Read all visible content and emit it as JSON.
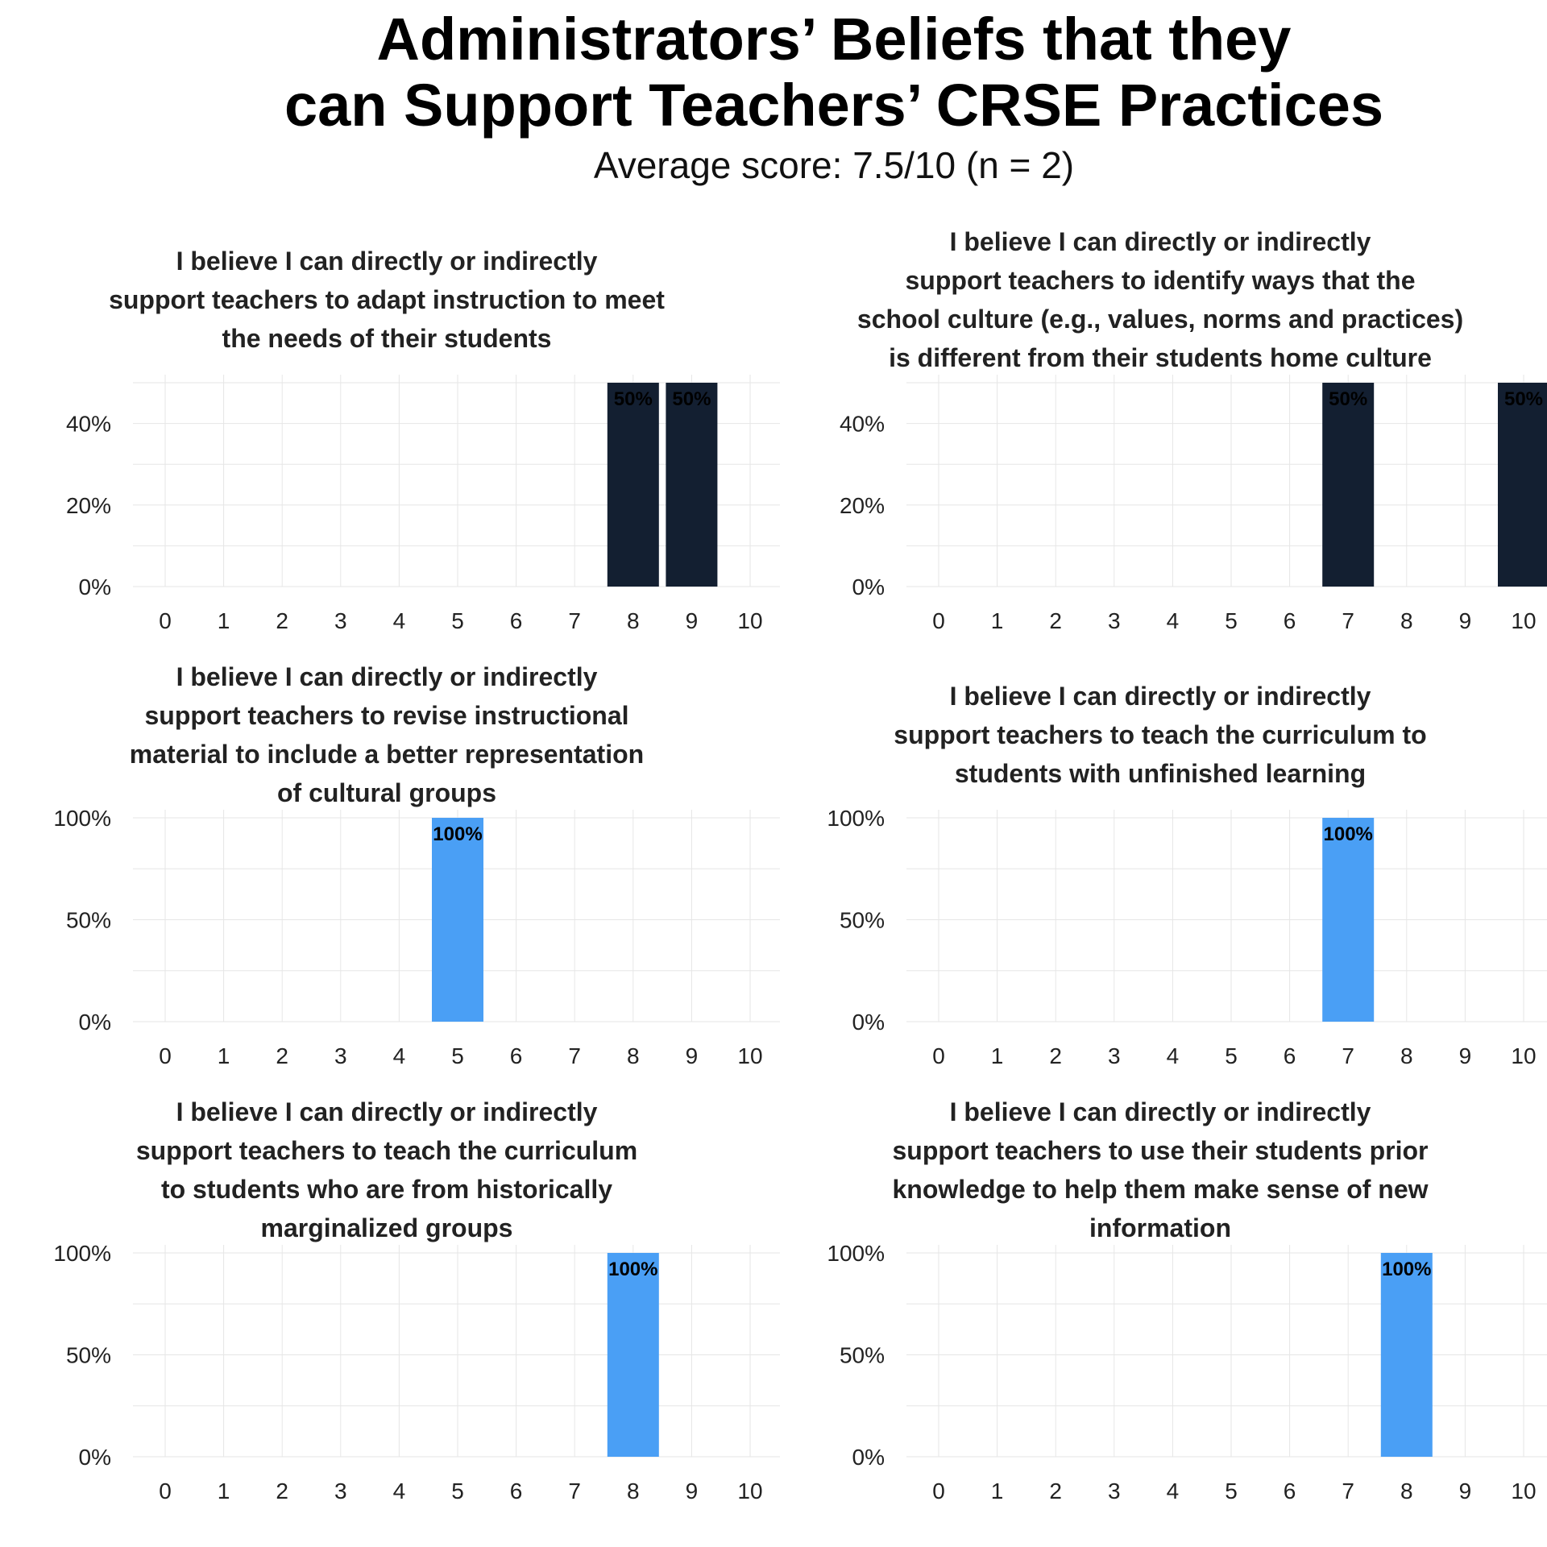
{
  "page": {
    "title_line1": "Administrators’ Beliefs that they",
    "title_line2": "can Support Teachers’ CRSE Practices",
    "subtitle": "Average score: 7.5/10 (n = 2)"
  },
  "colors": {
    "dark_bar": "#131f31",
    "light_bar": "#4a9ff5",
    "grid": "#e6e6e6"
  },
  "chart_data": [
    {
      "type": "bar",
      "title": "I believe I can directly or indirectly support teachers to adapt instruction to meet the needs of their students",
      "title_lines": [
        "I believe I can directly or indirectly",
        "support teachers to adapt instruction to meet",
        "the needs of their students"
      ],
      "x": [
        0,
        1,
        2,
        3,
        4,
        5,
        6,
        7,
        8,
        9,
        10
      ],
      "values": [
        0,
        0,
        0,
        0,
        0,
        0,
        0,
        0,
        50,
        50,
        0
      ],
      "labels": [
        "",
        "",
        "",
        "",
        "",
        "",
        "",
        "",
        "50%",
        "50%",
        ""
      ],
      "yticks": [
        "0%",
        "20%",
        "40%"
      ],
      "ytick_values": [
        0,
        20,
        40
      ],
      "ylim": [
        0,
        50
      ],
      "color": "dark"
    },
    {
      "type": "bar",
      "title": "I believe I can directly or indirectly support teachers to identify ways that the school culture (e.g., values, norms and practices) is different from their students home culture",
      "title_lines": [
        "I believe I can directly or indirectly",
        "support teachers to identify ways that the",
        "school culture (e.g., values, norms and practices)",
        "is different from their students home culture"
      ],
      "x": [
        0,
        1,
        2,
        3,
        4,
        5,
        6,
        7,
        8,
        9,
        10
      ],
      "values": [
        0,
        0,
        0,
        0,
        0,
        0,
        0,
        50,
        0,
        0,
        50
      ],
      "labels": [
        "",
        "",
        "",
        "",
        "",
        "",
        "",
        "50%",
        "",
        "",
        "50%"
      ],
      "yticks": [
        "0%",
        "20%",
        "40%"
      ],
      "ytick_values": [
        0,
        20,
        40
      ],
      "ylim": [
        0,
        50
      ],
      "color": "dark"
    },
    {
      "type": "bar",
      "title": "I believe I can directly or indirectly support teachers to revise instructional material to include a better representation of cultural groups",
      "title_lines": [
        "I believe I can directly or indirectly",
        "support teachers to revise instructional",
        "material to include a better representation",
        "of cultural groups"
      ],
      "x": [
        0,
        1,
        2,
        3,
        4,
        5,
        6,
        7,
        8,
        9,
        10
      ],
      "values": [
        0,
        0,
        0,
        0,
        0,
        100,
        0,
        0,
        0,
        0,
        0
      ],
      "labels": [
        "",
        "",
        "",
        "",
        "",
        "100%",
        "",
        "",
        "",
        "",
        ""
      ],
      "yticks": [
        "0%",
        "50%",
        "100%"
      ],
      "ytick_values": [
        0,
        50,
        100
      ],
      "ylim": [
        0,
        100
      ],
      "color": "light"
    },
    {
      "type": "bar",
      "title": "I believe I can directly or indirectly support teachers to teach the curriculum to students with unfinished learning",
      "title_lines": [
        "I believe I can directly or indirectly",
        "support teachers to teach the curriculum to",
        "students with unfinished learning"
      ],
      "x": [
        0,
        1,
        2,
        3,
        4,
        5,
        6,
        7,
        8,
        9,
        10
      ],
      "values": [
        0,
        0,
        0,
        0,
        0,
        0,
        0,
        100,
        0,
        0,
        0
      ],
      "labels": [
        "",
        "",
        "",
        "",
        "",
        "",
        "",
        "100%",
        "",
        "",
        ""
      ],
      "yticks": [
        "0%",
        "50%",
        "100%"
      ],
      "ytick_values": [
        0,
        50,
        100
      ],
      "ylim": [
        0,
        100
      ],
      "color": "light"
    },
    {
      "type": "bar",
      "title": "I believe I can directly or indirectly support teachers to teach the curriculum to students who are from historically marginalized groups",
      "title_lines": [
        "I believe I can directly or indirectly",
        "support teachers to teach the curriculum",
        "to students who are from historically",
        "marginalized groups"
      ],
      "x": [
        0,
        1,
        2,
        3,
        4,
        5,
        6,
        7,
        8,
        9,
        10
      ],
      "values": [
        0,
        0,
        0,
        0,
        0,
        0,
        0,
        0,
        100,
        0,
        0
      ],
      "labels": [
        "",
        "",
        "",
        "",
        "",
        "",
        "",
        "",
        "100%",
        "",
        ""
      ],
      "yticks": [
        "0%",
        "50%",
        "100%"
      ],
      "ytick_values": [
        0,
        50,
        100
      ],
      "ylim": [
        0,
        100
      ],
      "color": "light"
    },
    {
      "type": "bar",
      "title": "I believe I can directly or indirectly support teachers to use their students prior knowledge to help them make sense of new information",
      "title_lines": [
        "I believe I can directly or indirectly",
        "support teachers to use their students prior",
        "knowledge to help them make sense of new",
        "information"
      ],
      "x": [
        0,
        1,
        2,
        3,
        4,
        5,
        6,
        7,
        8,
        9,
        10
      ],
      "values": [
        0,
        0,
        0,
        0,
        0,
        0,
        0,
        0,
        100,
        0,
        0
      ],
      "labels": [
        "",
        "",
        "",
        "",
        "",
        "",
        "",
        "",
        "100%",
        "",
        ""
      ],
      "yticks": [
        "0%",
        "50%",
        "100%"
      ],
      "ytick_values": [
        0,
        50,
        100
      ],
      "ylim": [
        0,
        100
      ],
      "color": "light"
    }
  ]
}
